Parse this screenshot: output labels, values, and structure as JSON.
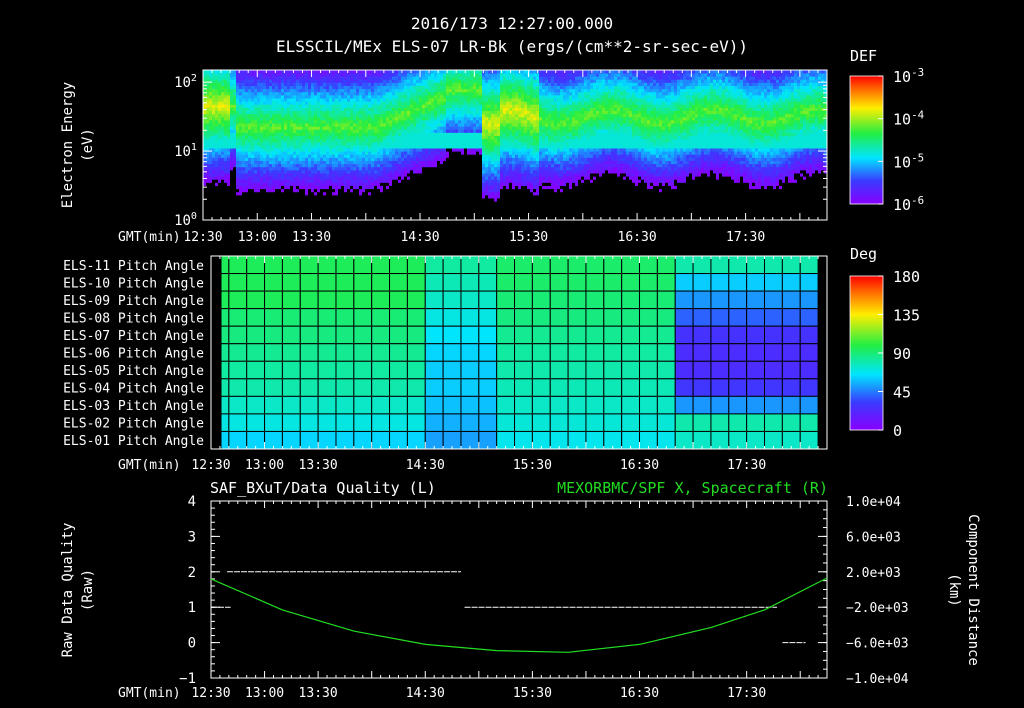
{
  "header": {
    "date_line": "2016/173 12:27:00.000",
    "title_line": "ELSSCIL/MEx ELS-07 LR-Bk  (ergs/(cm**2-sr-sec-eV))"
  },
  "chart_data": [
    {
      "type": "heatmap",
      "name": "electron-energy-spectrogram",
      "ylabel": "Electron Energy",
      "yunits": "(eV)",
      "yscale": "log",
      "ylim": [
        1,
        150
      ],
      "yticks": [
        {
          "value": 1,
          "label": "10",
          "exp": "0"
        },
        {
          "value": 10,
          "label": "10",
          "exp": "1"
        },
        {
          "value": 100,
          "label": "10",
          "exp": "2"
        }
      ],
      "xlabel": "GMT(min)",
      "xlim": [
        750,
        1095
      ],
      "xticks": [
        {
          "value": 750,
          "label": "12:30"
        },
        {
          "value": 780,
          "label": "13:00"
        },
        {
          "value": 810,
          "label": "13:30"
        },
        {
          "value": 870,
          "label": "14:30"
        },
        {
          "value": 930,
          "label": "15:30"
        },
        {
          "value": 990,
          "label": "16:30"
        },
        {
          "value": 1050,
          "label": "17:30"
        }
      ],
      "colorbar": {
        "title": "DEF",
        "scale": "log",
        "range": [
          1e-06,
          0.001
        ],
        "ticks": [
          {
            "value": 0.001,
            "label": "10",
            "exp": "-3"
          },
          {
            "value": 0.0001,
            "label": "10",
            "exp": "-4"
          },
          {
            "value": 1e-05,
            "label": "10",
            "exp": "-5"
          },
          {
            "value": 1e-06,
            "label": "10",
            "exp": "-6"
          }
        ]
      }
    },
    {
      "type": "heatmap",
      "name": "pitch-angle-map",
      "rows": [
        "ELS-11 Pitch Angle",
        "ELS-10 Pitch Angle",
        "ELS-09 Pitch Angle",
        "ELS-08 Pitch Angle",
        "ELS-07 Pitch Angle",
        "ELS-06 Pitch Angle",
        "ELS-05 Pitch Angle",
        "ELS-04 Pitch Angle",
        "ELS-03 Pitch Angle",
        "ELS-02 Pitch Angle",
        "ELS-01 Pitch Angle"
      ],
      "xlabel": "GMT(min)",
      "xlim": [
        750,
        1095
      ],
      "xticks": [
        {
          "value": 750,
          "label": "12:30"
        },
        {
          "value": 780,
          "label": "13:00"
        },
        {
          "value": 810,
          "label": "13:30"
        },
        {
          "value": 870,
          "label": "14:30"
        },
        {
          "value": 930,
          "label": "15:30"
        },
        {
          "value": 990,
          "label": "16:30"
        },
        {
          "value": 1050,
          "label": "17:30"
        }
      ],
      "column_minutes": 10,
      "time_segments": [
        {
          "t0": 750,
          "t1": 870,
          "values": [
            95,
            95,
            95,
            90,
            88,
            85,
            82,
            80,
            75,
            70,
            62
          ]
        },
        {
          "t0": 870,
          "t1": 905,
          "values": [
            82,
            78,
            75,
            70,
            65,
            62,
            60,
            60,
            58,
            55,
            52
          ]
        },
        {
          "t0": 905,
          "t1": 1003,
          "values": [
            92,
            92,
            90,
            88,
            85,
            82,
            80,
            78,
            75,
            72,
            68
          ]
        },
        {
          "t0": 1003,
          "t1": 1090,
          "values": [
            80,
            60,
            50,
            40,
            28,
            25,
            25,
            30,
            50,
            80,
            75
          ]
        }
      ],
      "colorbar": {
        "title": "Deg",
        "range": [
          0,
          180
        ],
        "ticks": [
          {
            "value": 180,
            "label": "180"
          },
          {
            "value": 135,
            "label": "135"
          },
          {
            "value": 90,
            "label": "90"
          },
          {
            "value": 45,
            "label": "45"
          },
          {
            "value": 0,
            "label": "0"
          }
        ]
      }
    },
    {
      "type": "line",
      "name": "data-quality-and-spacecraft-position",
      "title_left": "SAF_BXuT/Data Quality (L)",
      "title_right": "MEXORBMC/SPF X, Spacecraft (R)",
      "ylabel_left": "Raw Data Quality",
      "yunits_left": "(Raw)",
      "ylabel_right": "Component Distance",
      "yunits_right": "(km)",
      "xlabel": "GMT(min)",
      "xlim": [
        750,
        1095
      ],
      "xticks": [
        {
          "value": 750,
          "label": "12:30"
        },
        {
          "value": 780,
          "label": "13:00"
        },
        {
          "value": 810,
          "label": "13:30"
        },
        {
          "value": 870,
          "label": "14:30"
        },
        {
          "value": 930,
          "label": "15:30"
        },
        {
          "value": 990,
          "label": "16:30"
        },
        {
          "value": 1050,
          "label": "17:30"
        }
      ],
      "ylim_left": [
        -1,
        4
      ],
      "yticks_left": [
        {
          "value": 4,
          "label": "4"
        },
        {
          "value": 3,
          "label": "3"
        },
        {
          "value": 2,
          "label": "2"
        },
        {
          "value": 1,
          "label": "1"
        },
        {
          "value": 0,
          "label": "0"
        },
        {
          "value": -1,
          "label": "−1"
        }
      ],
      "ylim_right": [
        -10000,
        10000
      ],
      "yticks_right": [
        {
          "value": 10000,
          "label": "1.0e+04"
        },
        {
          "value": 6000,
          "label": "6.0e+03"
        },
        {
          "value": 2000,
          "label": "2.0e+03"
        },
        {
          "value": -2000,
          "label": "−2.0e+03"
        },
        {
          "value": -6000,
          "label": "−6.0e+03"
        },
        {
          "value": -10000,
          "label": "−1.0e+04"
        }
      ],
      "series": [
        {
          "name": "Data Quality",
          "axis": "left",
          "color": "#ffffff",
          "segments": [
            {
              "t0": 759,
              "t1": 890,
              "value": 2
            },
            {
              "t0": 750,
              "t1": 761,
              "value": 1
            },
            {
              "t0": 892,
              "t1": 1067,
              "value": 1
            },
            {
              "t0": 1070,
              "t1": 1083,
              "value": 0
            }
          ]
        },
        {
          "name": "Spacecraft X",
          "axis": "right",
          "color": "#22dd22",
          "points": [
            {
              "t": 750,
              "v": 1200
            },
            {
              "t": 790,
              "v": -2300
            },
            {
              "t": 830,
              "v": -4700
            },
            {
              "t": 870,
              "v": -6200
            },
            {
              "t": 910,
              "v": -6900
            },
            {
              "t": 950,
              "v": -7100
            },
            {
              "t": 990,
              "v": -6200
            },
            {
              "t": 1030,
              "v": -4300
            },
            {
              "t": 1060,
              "v": -2300
            },
            {
              "t": 1095,
              "v": 1300
            }
          ]
        }
      ]
    }
  ],
  "colors": {
    "background": "#000000",
    "axis": "#ffffff",
    "title_right": "#22dd22",
    "series_x": "#22dd22"
  }
}
